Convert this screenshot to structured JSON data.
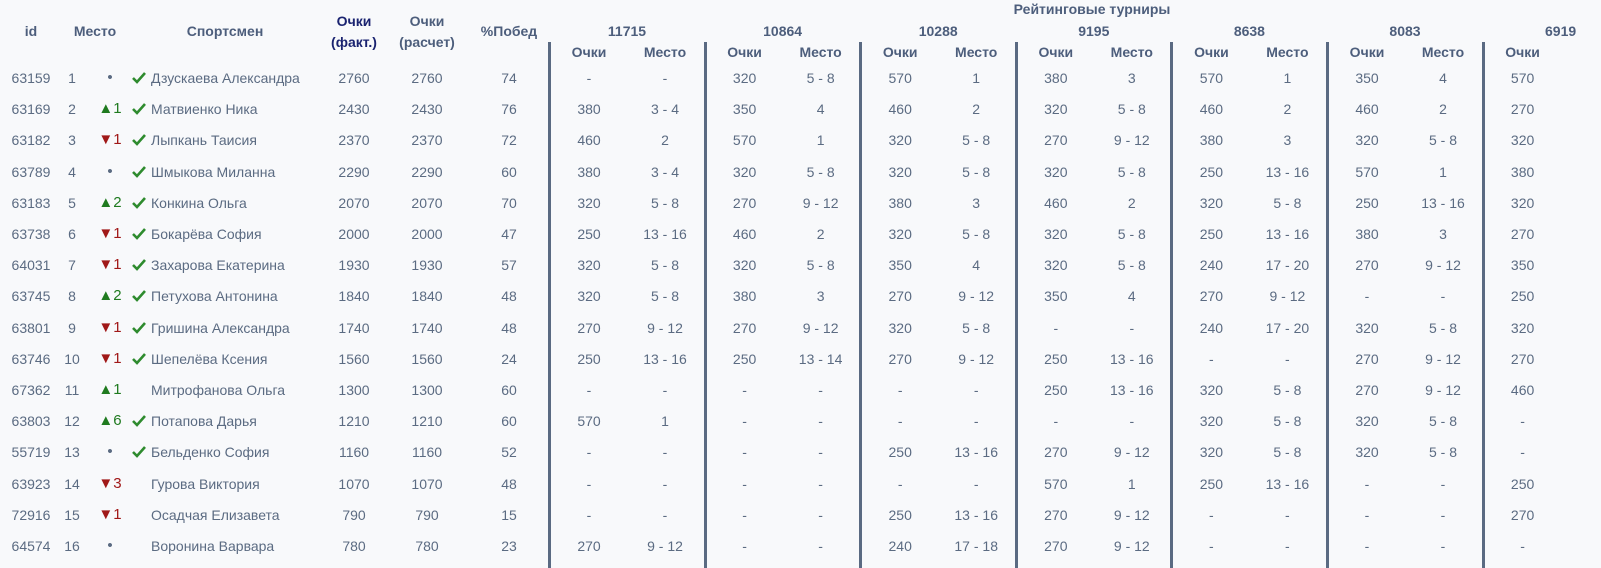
{
  "header": {
    "id": "id",
    "place": "Место",
    "name": "Спортсмен",
    "fact": [
      "Очки",
      "(факт.)"
    ],
    "calc": [
      "Очки",
      "(расчет)"
    ],
    "wins": "%Побед",
    "group": "Рейтинговые турниры",
    "sub_points": "Очки",
    "sub_place": "Место",
    "tournaments": [
      "11715",
      "10864",
      "10288",
      "9195",
      "8638",
      "8083",
      "6919"
    ]
  },
  "rows": [
    {
      "id": 63159,
      "place": 1,
      "change": "•",
      "verified": true,
      "name": "Дзускаева Александра",
      "fact": 2760,
      "calc": 2760,
      "wins": 74,
      "t": [
        [
          "-",
          "-"
        ],
        [
          320,
          "5 - 8"
        ],
        [
          570,
          "1"
        ],
        [
          380,
          "3"
        ],
        [
          570,
          "1"
        ],
        [
          350,
          "4"
        ],
        [
          570
        ]
      ]
    },
    {
      "id": 63169,
      "place": 2,
      "change": "▲1",
      "verified": true,
      "name": "Матвиенко Ника",
      "fact": 2430,
      "calc": 2430,
      "wins": 76,
      "t": [
        [
          380,
          "3 - 4"
        ],
        [
          350,
          "4"
        ],
        [
          460,
          "2"
        ],
        [
          320,
          "5 - 8"
        ],
        [
          460,
          "2"
        ],
        [
          460,
          "2"
        ],
        [
          270
        ]
      ]
    },
    {
      "id": 63182,
      "place": 3,
      "change": "▼1",
      "verified": true,
      "name": "Лыпкань Таисия",
      "fact": 2370,
      "calc": 2370,
      "wins": 72,
      "t": [
        [
          460,
          "2"
        ],
        [
          570,
          "1"
        ],
        [
          320,
          "5 - 8"
        ],
        [
          270,
          "9 - 12"
        ],
        [
          380,
          "3"
        ],
        [
          320,
          "5 - 8"
        ],
        [
          320
        ]
      ]
    },
    {
      "id": 63789,
      "place": 4,
      "change": "•",
      "verified": true,
      "name": "Шмыкова Миланна",
      "fact": 2290,
      "calc": 2290,
      "wins": 60,
      "t": [
        [
          380,
          "3 - 4"
        ],
        [
          320,
          "5 - 8"
        ],
        [
          320,
          "5 - 8"
        ],
        [
          320,
          "5 - 8"
        ],
        [
          250,
          "13 - 16"
        ],
        [
          570,
          "1"
        ],
        [
          380
        ]
      ]
    },
    {
      "id": 63183,
      "place": 5,
      "change": "▲2",
      "verified": true,
      "name": "Конкина Ольга",
      "fact": 2070,
      "calc": 2070,
      "wins": 70,
      "t": [
        [
          320,
          "5 - 8"
        ],
        [
          270,
          "9 - 12"
        ],
        [
          380,
          "3"
        ],
        [
          460,
          "2"
        ],
        [
          320,
          "5 - 8"
        ],
        [
          250,
          "13 - 16"
        ],
        [
          320
        ]
      ]
    },
    {
      "id": 63738,
      "place": 6,
      "change": "▼1",
      "verified": true,
      "name": "Бокарёва София",
      "fact": 2000,
      "calc": 2000,
      "wins": 47,
      "t": [
        [
          250,
          "13 - 16"
        ],
        [
          460,
          "2"
        ],
        [
          320,
          "5 - 8"
        ],
        [
          320,
          "5 - 8"
        ],
        [
          250,
          "13 - 16"
        ],
        [
          380,
          "3"
        ],
        [
          270
        ]
      ]
    },
    {
      "id": 64031,
      "place": 7,
      "change": "▼1",
      "verified": true,
      "name": "Захарова Екатерина",
      "fact": 1930,
      "calc": 1930,
      "wins": 57,
      "t": [
        [
          320,
          "5 - 8"
        ],
        [
          320,
          "5 - 8"
        ],
        [
          350,
          "4"
        ],
        [
          320,
          "5 - 8"
        ],
        [
          240,
          "17 - 20"
        ],
        [
          270,
          "9 - 12"
        ],
        [
          350
        ]
      ]
    },
    {
      "id": 63745,
      "place": 8,
      "change": "▲2",
      "verified": true,
      "name": "Петухова Антонина",
      "fact": 1840,
      "calc": 1840,
      "wins": 48,
      "t": [
        [
          320,
          "5 - 8"
        ],
        [
          380,
          "3"
        ],
        [
          270,
          "9 - 12"
        ],
        [
          350,
          "4"
        ],
        [
          270,
          "9 - 12"
        ],
        [
          "-",
          "-"
        ],
        [
          250
        ]
      ]
    },
    {
      "id": 63801,
      "place": 9,
      "change": "▼1",
      "verified": true,
      "name": "Гришина Александра",
      "fact": 1740,
      "calc": 1740,
      "wins": 48,
      "t": [
        [
          270,
          "9 - 12"
        ],
        [
          270,
          "9 - 12"
        ],
        [
          320,
          "5 - 8"
        ],
        [
          "-",
          "-"
        ],
        [
          240,
          "17 - 20"
        ],
        [
          320,
          "5 - 8"
        ],
        [
          320
        ]
      ]
    },
    {
      "id": 63746,
      "place": 10,
      "change": "▼1",
      "verified": true,
      "name": "Шепелёва Ксения",
      "fact": 1560,
      "calc": 1560,
      "wins": 24,
      "t": [
        [
          250,
          "13 - 16"
        ],
        [
          250,
          "13 - 14"
        ],
        [
          270,
          "9 - 12"
        ],
        [
          250,
          "13 - 16"
        ],
        [
          "-",
          "-"
        ],
        [
          270,
          "9 - 12"
        ],
        [
          270
        ]
      ]
    },
    {
      "id": 67362,
      "place": 11,
      "change": "▲1",
      "verified": false,
      "name": "Митрофанова Ольга",
      "fact": 1300,
      "calc": 1300,
      "wins": 60,
      "t": [
        [
          "-",
          "-"
        ],
        [
          "-",
          "-"
        ],
        [
          "-",
          "-"
        ],
        [
          250,
          "13 - 16"
        ],
        [
          320,
          "5 - 8"
        ],
        [
          270,
          "9 - 12"
        ],
        [
          460
        ]
      ]
    },
    {
      "id": 63803,
      "place": 12,
      "change": "▲6",
      "verified": true,
      "name": "Потапова Дарья",
      "fact": 1210,
      "calc": 1210,
      "wins": 60,
      "t": [
        [
          570,
          "1"
        ],
        [
          "-",
          "-"
        ],
        [
          "-",
          "-"
        ],
        [
          "-",
          "-"
        ],
        [
          320,
          "5 - 8"
        ],
        [
          320,
          "5 - 8"
        ],
        [
          "-"
        ]
      ]
    },
    {
      "id": 55719,
      "place": 13,
      "change": "•",
      "verified": true,
      "name": "Бельденко София",
      "fact": 1160,
      "calc": 1160,
      "wins": 52,
      "t": [
        [
          "-",
          "-"
        ],
        [
          "-",
          "-"
        ],
        [
          250,
          "13 - 16"
        ],
        [
          270,
          "9 - 12"
        ],
        [
          320,
          "5 - 8"
        ],
        [
          320,
          "5 - 8"
        ],
        [
          "-"
        ]
      ]
    },
    {
      "id": 63923,
      "place": 14,
      "change": "▼3",
      "verified": false,
      "name": "Гурова Виктория",
      "fact": 1070,
      "calc": 1070,
      "wins": 48,
      "t": [
        [
          "-",
          "-"
        ],
        [
          "-",
          "-"
        ],
        [
          "-",
          "-"
        ],
        [
          570,
          "1"
        ],
        [
          250,
          "13 - 16"
        ],
        [
          "-",
          "-"
        ],
        [
          250
        ]
      ]
    },
    {
      "id": 72916,
      "place": 15,
      "change": "▼1",
      "verified": false,
      "name": "Осадчая Елизавета",
      "fact": 790,
      "calc": 790,
      "wins": 15,
      "t": [
        [
          "-",
          "-"
        ],
        [
          "-",
          "-"
        ],
        [
          250,
          "13 - 16"
        ],
        [
          270,
          "9 - 12"
        ],
        [
          "-",
          "-"
        ],
        [
          "-",
          "-"
        ],
        [
          270
        ]
      ]
    },
    {
      "id": 64574,
      "place": 16,
      "change": "•",
      "verified": false,
      "name": "Воронина Варвара",
      "fact": 780,
      "calc": 780,
      "wins": 23,
      "t": [
        [
          270,
          "9 - 12"
        ],
        [
          "-",
          "-"
        ],
        [
          240,
          "17 - 18"
        ],
        [
          270,
          "9 - 12"
        ],
        [
          "-",
          "-"
        ],
        [
          "-",
          "-"
        ],
        [
          "-"
        ]
      ]
    }
  ]
}
